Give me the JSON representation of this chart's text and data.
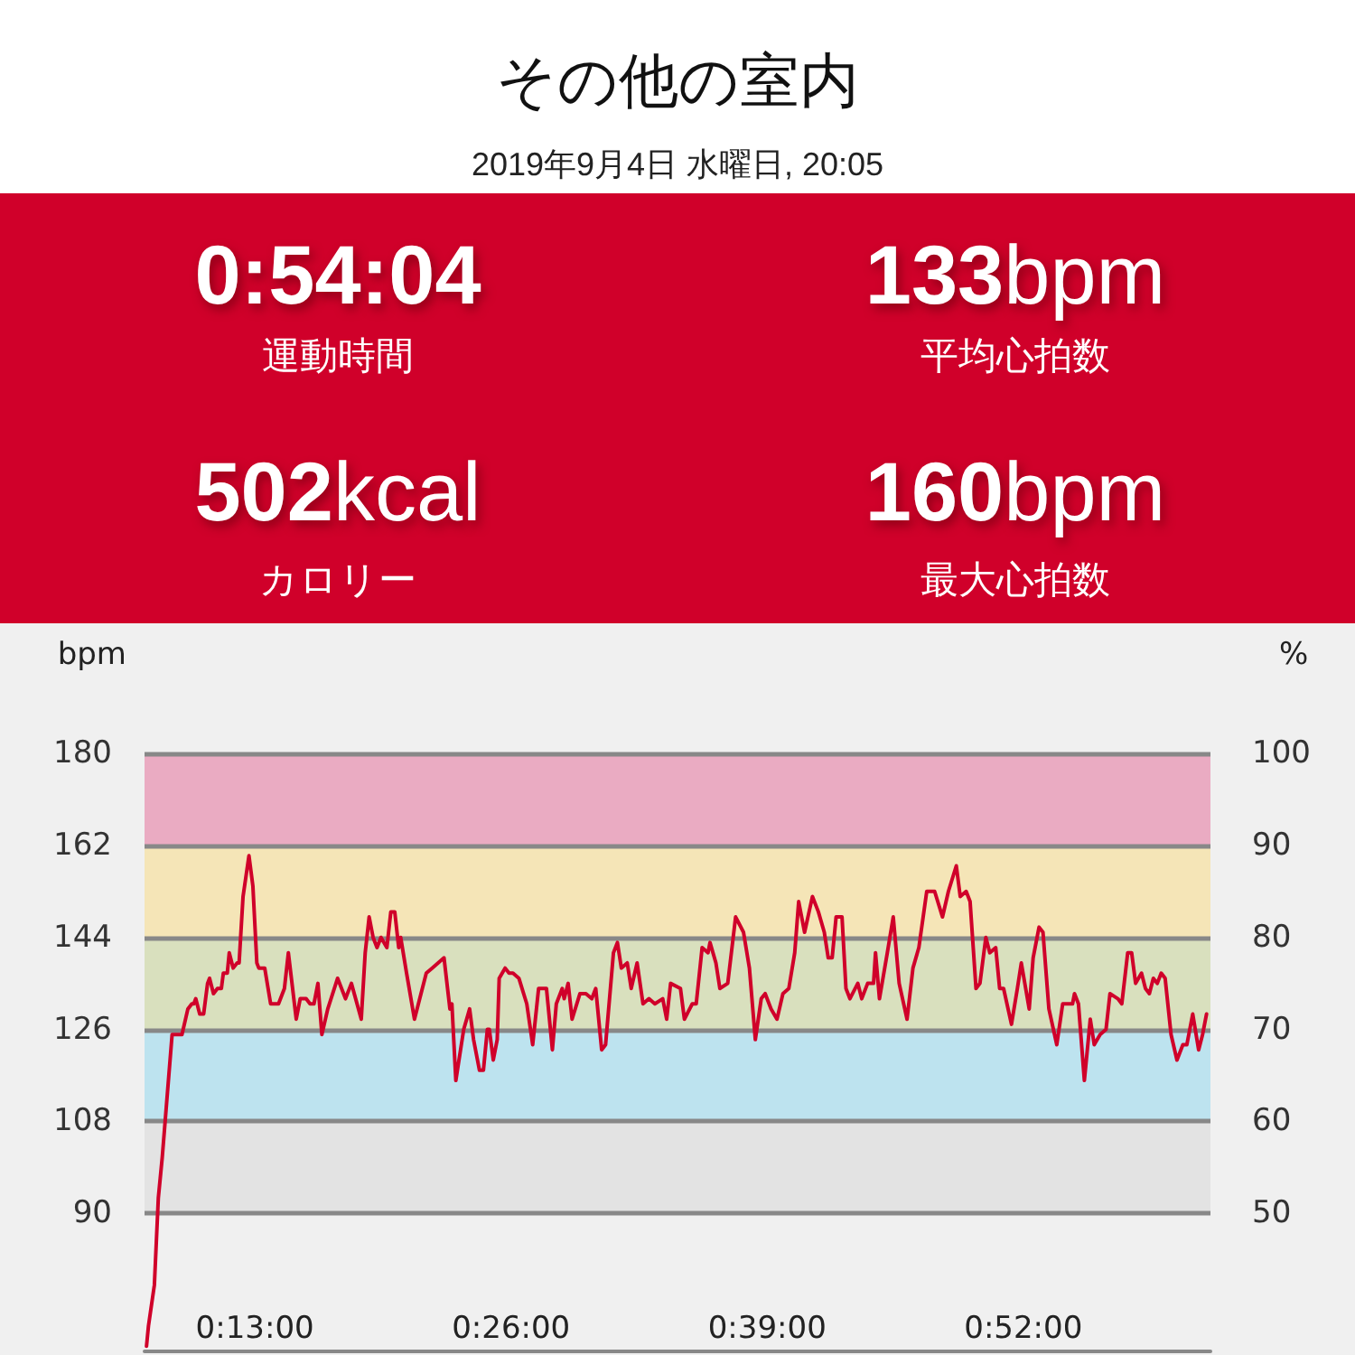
{
  "chart_data": [
    {
      "type": "other",
      "title": "その他の室内",
      "subtitle": "2019年9月4日 水曜日, 20:05",
      "annotations": [
        "0:54:04",
        "運動時間",
        "133bpm",
        "平均心拍数",
        "502kcal",
        "カロリー",
        "160bpm",
        "最大心拍数"
      ]
    },
    {
      "type": "line",
      "ylabel": "bpm",
      "y2label": "%",
      "color": "#d0002a",
      "x": [
        7.5,
        7.6,
        7.9,
        8.1,
        8.3,
        8.8,
        9.0,
        9.3,
        9.6,
        9.8,
        9.9,
        10.0,
        10.2,
        10.4,
        10.6,
        10.7,
        10.9,
        11.1,
        11.3,
        11.4,
        11.6,
        11.7,
        11.9,
        12.1,
        12.2,
        12.4,
        12.7,
        12.9,
        13.1,
        13.2,
        13.5,
        13.8,
        14.2,
        14.5,
        14.7,
        15.1,
        15.3,
        15.6,
        15.8,
        16.0,
        16.2,
        16.4,
        16.7,
        17.2,
        17.6,
        17.9,
        18.4,
        18.6,
        18.8,
        19.0,
        19.2,
        19.4,
        19.7,
        19.9,
        20.1,
        20.3,
        20.4,
        20.7,
        21.1,
        21.3,
        21.7,
        22.0,
        22.3,
        22.6,
        22.9,
        23.0,
        23.2,
        23.6,
        23.9,
        24.1,
        24.4,
        24.6,
        24.8,
        24.9,
        25.1,
        25.3,
        25.4,
        25.7,
        25.9,
        26.1,
        26.4,
        26.8,
        27.1,
        27.4,
        27.8,
        28.1,
        28.3,
        28.6,
        28.7,
        28.9,
        29.1,
        29.5,
        29.8,
        30.1,
        30.3,
        30.6,
        30.8,
        31.2,
        31.4,
        31.6,
        31.9,
        32.1,
        32.4,
        32.7,
        33.0,
        33.3,
        33.7,
        33.9,
        34.1,
        34.6,
        34.8,
        35.2,
        35.4,
        35.7,
        36.0,
        36.1,
        36.4,
        36.6,
        37.0,
        37.4,
        37.8,
        38.1,
        38.4,
        38.7,
        38.9,
        39.2,
        39.5,
        39.8,
        40.1,
        40.4,
        40.6,
        40.9,
        41.3,
        41.6,
        41.9,
        42.1,
        42.3,
        42.5,
        42.8,
        43.0,
        43.2,
        43.6,
        43.8,
        44.1,
        44.4,
        44.5,
        44.7,
        45.1,
        45.4,
        45.7,
        46.1,
        46.4,
        46.7,
        47.1,
        47.5,
        47.9,
        48.2,
        48.6,
        48.8,
        49.1,
        49.3,
        49.6,
        49.8,
        50.1,
        50.3,
        50.6,
        50.8,
        51.0,
        51.4,
        51.7,
        51.9,
        52.3,
        52.5,
        52.8,
        53.0,
        53.3,
        53.7,
        54.0,
        54.2,
        54.5,
        54.6,
        54.8,
        55.1,
        55.4,
        55.6,
        55.9,
        56.2,
        56.4,
        56.8,
        57.0,
        57.3,
        57.5,
        57.7,
        58.0,
        58.2,
        58.4,
        58.6,
        58.8,
        59.0,
        59.2,
        59.5,
        59.8,
        60.1,
        60.3,
        60.6,
        60.9,
        61.1,
        61.3
      ],
      "values": [
        64,
        68,
        76,
        93,
        101,
        125,
        125,
        125,
        130,
        131,
        131,
        132,
        129,
        129,
        135,
        136,
        133,
        134,
        134,
        137,
        137,
        141,
        138,
        139,
        139,
        152,
        160,
        154,
        139,
        138,
        138,
        131,
        131,
        134,
        141,
        128,
        132,
        132,
        131,
        131,
        135,
        125,
        130,
        136,
        132,
        135,
        128,
        141,
        148,
        144,
        142,
        144,
        142,
        149,
        149,
        142,
        144,
        137,
        128,
        131,
        137,
        138,
        139,
        140,
        130,
        131,
        116,
        126,
        130,
        124,
        118,
        118,
        126,
        126,
        120,
        124,
        136,
        138,
        137,
        137,
        136,
        131,
        123,
        134,
        134,
        122,
        131,
        134,
        132,
        135,
        128,
        133,
        133,
        132,
        134,
        122,
        123,
        141,
        143,
        138,
        139,
        134,
        139,
        131,
        132,
        131,
        132,
        128,
        135,
        134,
        128,
        131,
        131,
        142,
        141,
        143,
        139,
        134,
        135,
        148,
        145,
        138,
        124,
        132,
        133,
        130,
        128,
        133,
        134,
        141,
        151,
        145,
        152,
        149,
        145,
        140,
        140,
        148,
        148,
        134,
        132,
        135,
        132,
        135,
        135,
        141,
        132,
        141,
        148,
        135,
        128,
        138,
        142,
        153,
        153,
        148,
        153,
        158,
        152,
        153,
        151,
        134,
        135,
        144,
        141,
        142,
        134,
        134,
        127,
        134,
        139,
        130,
        140,
        146,
        145,
        130,
        123,
        131,
        131,
        131,
        133,
        131,
        116,
        128,
        123,
        125,
        126,
        133,
        132,
        131,
        141,
        141,
        135,
        137,
        134,
        133,
        136,
        135,
        137,
        136,
        125,
        120,
        123,
        123,
        129,
        122,
        125,
        129
      ],
      "xlim": [
        7.4,
        61.5
      ],
      "xticks": [
        {
          "value": 13,
          "label": "0:13:00"
        },
        {
          "value": 26,
          "label": "0:26:00"
        },
        {
          "value": 39,
          "label": "0:39:00"
        },
        {
          "value": 52,
          "label": "0:52:00"
        }
      ],
      "ylim": [
        63,
        180
      ],
      "yticks": [
        90,
        108,
        126,
        144,
        162,
        180
      ],
      "y2lim": [
        35,
        100
      ],
      "y2ticks": [
        50,
        60,
        70,
        80,
        90,
        100
      ],
      "bands": [
        {
          "axis": "y",
          "from": 162,
          "to": 180,
          "color": "#eaabc2"
        },
        {
          "axis": "y",
          "from": 144,
          "to": 162,
          "color": "#f5e5b7"
        },
        {
          "axis": "y",
          "from": 126,
          "to": 144,
          "color": "#d9e0be"
        },
        {
          "axis": "y",
          "from": 108,
          "to": 126,
          "color": "#bde3ef"
        },
        {
          "axis": "y",
          "from": 90,
          "to": 108,
          "color": "#e3e3e3"
        }
      ],
      "grid": "y",
      "marker": "none",
      "line_style": "solid"
    }
  ]
}
